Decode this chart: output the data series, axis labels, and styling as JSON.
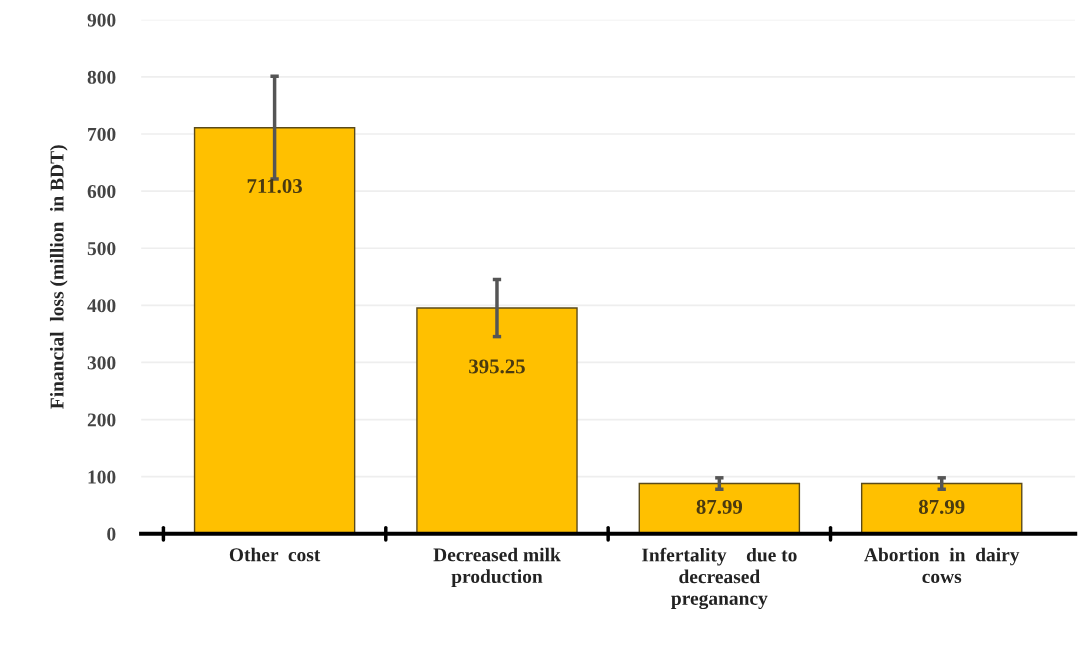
{
  "chart_data": {
    "type": "bar",
    "ylabel": "Financial  loss (million  in BDT)",
    "categories": [
      "Other  cost",
      "Decreased milk\nproduction",
      "Infertality    due to\ndecreased\npreganancy",
      "Abortion  in  dairy\ncows"
    ],
    "values": [
      711.03,
      395.25,
      87.99,
      87.99
    ],
    "errors": [
      90,
      50,
      10,
      10
    ],
    "color": "#ffc000",
    "data_labels": true,
    "ylim": [
      0,
      900
    ],
    "yticks": [
      0,
      100,
      200,
      300,
      400,
      500,
      600,
      700,
      800,
      900
    ],
    "grid": "y"
  }
}
